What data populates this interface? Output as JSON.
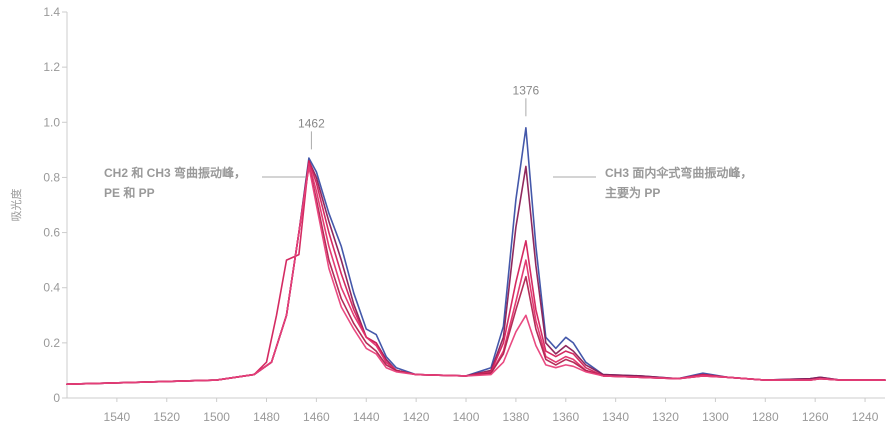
{
  "chart_data": {
    "type": "line",
    "title": "",
    "xlabel": "",
    "ylabel": "吸光度",
    "x_reversed": true,
    "xlim": [
      1560,
      1232
    ],
    "ylim": [
      0,
      1.4
    ],
    "x_ticks": [
      1540,
      1520,
      1500,
      1480,
      1460,
      1440,
      1420,
      1400,
      1380,
      1360,
      1340,
      1320,
      1300,
      1280,
      1260,
      1240
    ],
    "y_ticks": [
      {
        "value": 0,
        "label": "0"
      },
      {
        "value": 0.2,
        "label": "0.2"
      },
      {
        "value": 0.4,
        "label": "0.4"
      },
      {
        "value": 0.6,
        "label": "0.6"
      },
      {
        "value": 0.8,
        "label": "0.8"
      },
      {
        "value": 1.0,
        "label": "1.0"
      },
      {
        "value": 1.2,
        "label": "1.2"
      },
      {
        "value": 1.4,
        "label": "1.4"
      }
    ],
    "grid": false,
    "legend": "none",
    "peaks": [
      {
        "x": 1462,
        "label": "1462"
      },
      {
        "x": 1376,
        "label": "1376"
      }
    ],
    "annotations": [
      {
        "id": "left",
        "lines": [
          "CH2 和 CH3 弯曲振动峰，",
          "PE 和 PP"
        ]
      },
      {
        "id": "right",
        "lines": [
          "CH3 面内伞式弯曲振动峰，",
          "主要为 PP"
        ]
      }
    ],
    "series": [
      {
        "color": "#3a4fa5",
        "points": [
          [
            1560,
            0.05
          ],
          [
            1500,
            0.065
          ],
          [
            1485,
            0.085
          ],
          [
            1478,
            0.13
          ],
          [
            1472,
            0.3
          ],
          [
            1467,
            0.6
          ],
          [
            1463,
            0.87
          ],
          [
            1460,
            0.82
          ],
          [
            1455,
            0.67
          ],
          [
            1450,
            0.55
          ],
          [
            1445,
            0.38
          ],
          [
            1440,
            0.25
          ],
          [
            1436,
            0.23
          ],
          [
            1432,
            0.15
          ],
          [
            1428,
            0.11
          ],
          [
            1420,
            0.085
          ],
          [
            1400,
            0.08
          ],
          [
            1390,
            0.11
          ],
          [
            1385,
            0.26
          ],
          [
            1380,
            0.72
          ],
          [
            1376,
            0.98
          ],
          [
            1372,
            0.55
          ],
          [
            1368,
            0.22
          ],
          [
            1364,
            0.18
          ],
          [
            1360,
            0.22
          ],
          [
            1357,
            0.2
          ],
          [
            1352,
            0.13
          ],
          [
            1345,
            0.085
          ],
          [
            1330,
            0.08
          ],
          [
            1315,
            0.07
          ],
          [
            1305,
            0.09
          ],
          [
            1295,
            0.075
          ],
          [
            1280,
            0.065
          ],
          [
            1262,
            0.07
          ],
          [
            1258,
            0.075
          ],
          [
            1250,
            0.065
          ],
          [
            1232,
            0.065
          ]
        ]
      },
      {
        "color": "#8a1e55",
        "points": [
          [
            1560,
            0.05
          ],
          [
            1500,
            0.065
          ],
          [
            1485,
            0.085
          ],
          [
            1478,
            0.13
          ],
          [
            1472,
            0.3
          ],
          [
            1467,
            0.6
          ],
          [
            1463,
            0.86
          ],
          [
            1460,
            0.8
          ],
          [
            1455,
            0.64
          ],
          [
            1450,
            0.5
          ],
          [
            1445,
            0.34
          ],
          [
            1440,
            0.22
          ],
          [
            1436,
            0.2
          ],
          [
            1432,
            0.14
          ],
          [
            1428,
            0.1
          ],
          [
            1420,
            0.085
          ],
          [
            1400,
            0.08
          ],
          [
            1390,
            0.1
          ],
          [
            1385,
            0.22
          ],
          [
            1380,
            0.62
          ],
          [
            1376,
            0.84
          ],
          [
            1372,
            0.48
          ],
          [
            1368,
            0.2
          ],
          [
            1364,
            0.16
          ],
          [
            1360,
            0.19
          ],
          [
            1357,
            0.17
          ],
          [
            1352,
            0.12
          ],
          [
            1345,
            0.085
          ],
          [
            1330,
            0.08
          ],
          [
            1315,
            0.07
          ],
          [
            1305,
            0.085
          ],
          [
            1295,
            0.075
          ],
          [
            1280,
            0.065
          ],
          [
            1262,
            0.07
          ],
          [
            1258,
            0.075
          ],
          [
            1250,
            0.065
          ],
          [
            1232,
            0.065
          ]
        ]
      },
      {
        "color": "#d2205a",
        "points": [
          [
            1560,
            0.05
          ],
          [
            1500,
            0.065
          ],
          [
            1485,
            0.085
          ],
          [
            1480,
            0.13
          ],
          [
            1476,
            0.3
          ],
          [
            1472,
            0.5
          ],
          [
            1467,
            0.52
          ],
          [
            1463,
            0.86
          ],
          [
            1460,
            0.78
          ],
          [
            1455,
            0.6
          ],
          [
            1450,
            0.45
          ],
          [
            1445,
            0.32
          ],
          [
            1440,
            0.22
          ],
          [
            1436,
            0.2
          ],
          [
            1432,
            0.13
          ],
          [
            1428,
            0.1
          ],
          [
            1420,
            0.085
          ],
          [
            1400,
            0.08
          ],
          [
            1390,
            0.095
          ],
          [
            1385,
            0.2
          ],
          [
            1380,
            0.42
          ],
          [
            1376,
            0.57
          ],
          [
            1372,
            0.32
          ],
          [
            1368,
            0.17
          ],
          [
            1364,
            0.15
          ],
          [
            1360,
            0.17
          ],
          [
            1357,
            0.16
          ],
          [
            1352,
            0.11
          ],
          [
            1345,
            0.08
          ],
          [
            1330,
            0.075
          ],
          [
            1315,
            0.07
          ],
          [
            1305,
            0.085
          ],
          [
            1295,
            0.075
          ],
          [
            1280,
            0.065
          ],
          [
            1262,
            0.065
          ],
          [
            1258,
            0.07
          ],
          [
            1250,
            0.065
          ],
          [
            1232,
            0.065
          ]
        ]
      },
      {
        "color": "#e0306a",
        "points": [
          [
            1560,
            0.05
          ],
          [
            1500,
            0.065
          ],
          [
            1485,
            0.085
          ],
          [
            1478,
            0.13
          ],
          [
            1472,
            0.3
          ],
          [
            1467,
            0.6
          ],
          [
            1463,
            0.85
          ],
          [
            1460,
            0.75
          ],
          [
            1455,
            0.55
          ],
          [
            1450,
            0.4
          ],
          [
            1445,
            0.3
          ],
          [
            1440,
            0.22
          ],
          [
            1436,
            0.19
          ],
          [
            1432,
            0.13
          ],
          [
            1428,
            0.1
          ],
          [
            1420,
            0.085
          ],
          [
            1400,
            0.08
          ],
          [
            1390,
            0.09
          ],
          [
            1385,
            0.17
          ],
          [
            1380,
            0.35
          ],
          [
            1376,
            0.5
          ],
          [
            1372,
            0.28
          ],
          [
            1368,
            0.15
          ],
          [
            1364,
            0.13
          ],
          [
            1360,
            0.15
          ],
          [
            1357,
            0.14
          ],
          [
            1352,
            0.1
          ],
          [
            1345,
            0.08
          ],
          [
            1330,
            0.075
          ],
          [
            1315,
            0.07
          ],
          [
            1305,
            0.08
          ],
          [
            1295,
            0.075
          ],
          [
            1280,
            0.065
          ],
          [
            1262,
            0.065
          ],
          [
            1258,
            0.07
          ],
          [
            1250,
            0.065
          ],
          [
            1232,
            0.065
          ]
        ]
      },
      {
        "color": "#b0224f",
        "points": [
          [
            1560,
            0.05
          ],
          [
            1500,
            0.065
          ],
          [
            1485,
            0.085
          ],
          [
            1478,
            0.13
          ],
          [
            1472,
            0.3
          ],
          [
            1467,
            0.6
          ],
          [
            1463,
            0.84
          ],
          [
            1460,
            0.72
          ],
          [
            1455,
            0.5
          ],
          [
            1450,
            0.36
          ],
          [
            1445,
            0.27
          ],
          [
            1440,
            0.2
          ],
          [
            1436,
            0.17
          ],
          [
            1432,
            0.12
          ],
          [
            1428,
            0.1
          ],
          [
            1420,
            0.085
          ],
          [
            1400,
            0.08
          ],
          [
            1390,
            0.09
          ],
          [
            1385,
            0.16
          ],
          [
            1380,
            0.32
          ],
          [
            1376,
            0.44
          ],
          [
            1372,
            0.25
          ],
          [
            1368,
            0.14
          ],
          [
            1364,
            0.12
          ],
          [
            1360,
            0.14
          ],
          [
            1357,
            0.13
          ],
          [
            1352,
            0.1
          ],
          [
            1345,
            0.08
          ],
          [
            1330,
            0.075
          ],
          [
            1315,
            0.07
          ],
          [
            1305,
            0.08
          ],
          [
            1295,
            0.075
          ],
          [
            1280,
            0.065
          ],
          [
            1262,
            0.065
          ],
          [
            1258,
            0.07
          ],
          [
            1250,
            0.065
          ],
          [
            1232,
            0.065
          ]
        ]
      },
      {
        "color": "#e8407a",
        "points": [
          [
            1560,
            0.05
          ],
          [
            1500,
            0.065
          ],
          [
            1485,
            0.085
          ],
          [
            1478,
            0.13
          ],
          [
            1472,
            0.3
          ],
          [
            1467,
            0.6
          ],
          [
            1463,
            0.84
          ],
          [
            1460,
            0.7
          ],
          [
            1455,
            0.47
          ],
          [
            1450,
            0.33
          ],
          [
            1445,
            0.25
          ],
          [
            1440,
            0.18
          ],
          [
            1436,
            0.16
          ],
          [
            1432,
            0.11
          ],
          [
            1428,
            0.095
          ],
          [
            1420,
            0.085
          ],
          [
            1400,
            0.08
          ],
          [
            1390,
            0.085
          ],
          [
            1385,
            0.13
          ],
          [
            1380,
            0.24
          ],
          [
            1376,
            0.3
          ],
          [
            1372,
            0.19
          ],
          [
            1368,
            0.12
          ],
          [
            1364,
            0.11
          ],
          [
            1360,
            0.12
          ],
          [
            1357,
            0.115
          ],
          [
            1352,
            0.095
          ],
          [
            1345,
            0.08
          ],
          [
            1330,
            0.075
          ],
          [
            1315,
            0.07
          ],
          [
            1305,
            0.08
          ],
          [
            1295,
            0.075
          ],
          [
            1280,
            0.065
          ],
          [
            1262,
            0.065
          ],
          [
            1258,
            0.07
          ],
          [
            1250,
            0.065
          ],
          [
            1232,
            0.065
          ]
        ]
      }
    ]
  }
}
